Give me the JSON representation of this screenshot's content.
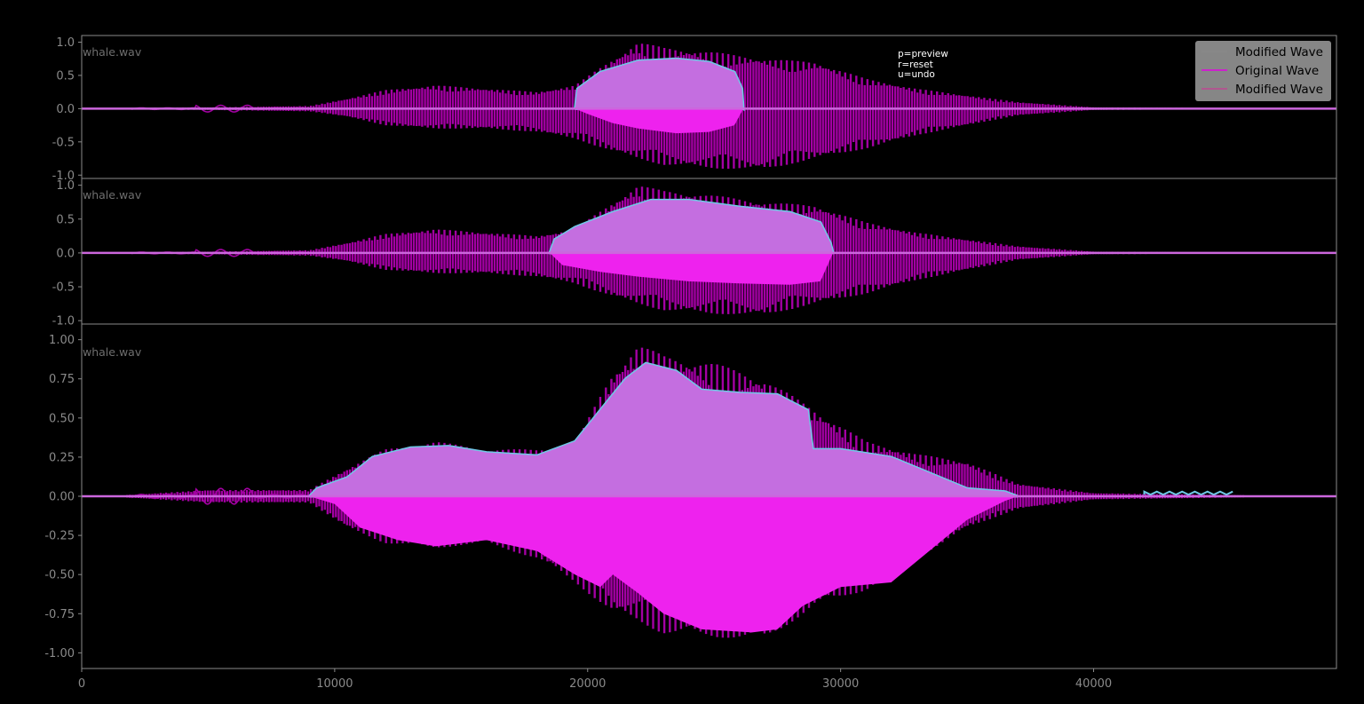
{
  "filename": "whale.wav",
  "help_text": [
    "p=preview",
    "r=reset",
    "u=undo"
  ],
  "legend": [
    {
      "label": "Modified Wave",
      "color": "#888888"
    },
    {
      "label": "Original Wave",
      "color": "#cc22cc"
    },
    {
      "label": "Modified Wave",
      "color": "#b0568f"
    }
  ],
  "colors": {
    "background": "#000000",
    "original": "#a300a3",
    "fill_positive": "#c46ee0",
    "fill_negative": "#ee22ee",
    "outline": "#6fc8e6",
    "zero_line": "#cc66dd",
    "axis": "#8a8a8a",
    "legend_bg": "#8a8a8a"
  },
  "chart_data": [
    {
      "type": "line",
      "panel": "top",
      "series_names": [
        "Modified Wave",
        "Original Wave",
        "Modified Wave"
      ],
      "xlim": [
        0,
        49600
      ],
      "ylim": [
        -1.05,
        1.1
      ],
      "y_ticks": [
        "1.0",
        "0.5",
        "0.0",
        "-0.5",
        "-1.0"
      ],
      "y_tick_values": [
        1.0,
        0.5,
        0.0,
        -0.5,
        -1.0
      ],
      "original_envelope": [
        [
          2000,
          0.01
        ],
        [
          5000,
          0.02
        ],
        [
          9000,
          0.04
        ],
        [
          10500,
          0.15
        ],
        [
          12000,
          0.28
        ],
        [
          14000,
          0.35
        ],
        [
          16000,
          0.3
        ],
        [
          18000,
          0.25
        ],
        [
          19500,
          0.35
        ],
        [
          21000,
          0.75
        ],
        [
          22000,
          1.0
        ],
        [
          23000,
          0.92
        ],
        [
          25000,
          0.85
        ],
        [
          27000,
          0.75
        ],
        [
          29000,
          0.7
        ],
        [
          31000,
          0.45
        ],
        [
          33000,
          0.3
        ],
        [
          35000,
          0.2
        ],
        [
          37000,
          0.1
        ],
        [
          40000,
          0.02
        ],
        [
          49600,
          0.0
        ]
      ],
      "original_envelope_neg": [
        [
          2000,
          -0.01
        ],
        [
          5000,
          -0.02
        ],
        [
          9000,
          -0.04
        ],
        [
          10500,
          -0.12
        ],
        [
          12000,
          -0.25
        ],
        [
          14000,
          -0.3
        ],
        [
          16000,
          -0.3
        ],
        [
          18000,
          -0.35
        ],
        [
          19500,
          -0.45
        ],
        [
          21000,
          -0.65
        ],
        [
          22000,
          -0.75
        ],
        [
          23000,
          -0.85
        ],
        [
          25000,
          -0.9
        ],
        [
          27000,
          -0.92
        ],
        [
          29000,
          -0.75
        ],
        [
          31000,
          -0.6
        ],
        [
          33000,
          -0.4
        ],
        [
          35000,
          -0.25
        ],
        [
          37000,
          -0.1
        ],
        [
          40000,
          -0.02
        ],
        [
          49600,
          0.0
        ]
      ],
      "modified_pos": [
        [
          19500,
          0.0
        ],
        [
          19600,
          0.3
        ],
        [
          20500,
          0.55
        ],
        [
          22000,
          0.72
        ],
        [
          23500,
          0.75
        ],
        [
          24800,
          0.7
        ],
        [
          25800,
          0.55
        ],
        [
          26100,
          0.3
        ],
        [
          26150,
          0.0
        ]
      ],
      "modified_neg": [
        [
          19500,
          0.0
        ],
        [
          20000,
          -0.08
        ],
        [
          21000,
          -0.22
        ],
        [
          22000,
          -0.3
        ],
        [
          23500,
          -0.37
        ],
        [
          24800,
          -0.35
        ],
        [
          25800,
          -0.25
        ],
        [
          26150,
          0.0
        ]
      ]
    },
    {
      "type": "line",
      "panel": "middle",
      "series_names": [
        "Modified Wave",
        "Original Wave",
        "Modified Wave"
      ],
      "xlim": [
        0,
        49600
      ],
      "ylim": [
        -1.05,
        1.1
      ],
      "y_ticks": [
        "1.0",
        "0.5",
        "0.0",
        "-0.5",
        "-1.0"
      ],
      "y_tick_values": [
        1.0,
        0.5,
        0.0,
        -0.5,
        -1.0
      ],
      "original_envelope": [
        [
          2000,
          0.01
        ],
        [
          5000,
          0.02
        ],
        [
          9000,
          0.04
        ],
        [
          10500,
          0.15
        ],
        [
          12000,
          0.28
        ],
        [
          14000,
          0.35
        ],
        [
          16000,
          0.3
        ],
        [
          18000,
          0.25
        ],
        [
          19500,
          0.35
        ],
        [
          21000,
          0.75
        ],
        [
          22000,
          1.0
        ],
        [
          23000,
          0.92
        ],
        [
          25000,
          0.85
        ],
        [
          27000,
          0.75
        ],
        [
          29000,
          0.7
        ],
        [
          31000,
          0.45
        ],
        [
          33000,
          0.3
        ],
        [
          35000,
          0.2
        ],
        [
          37000,
          0.1
        ],
        [
          40000,
          0.02
        ],
        [
          49600,
          0.0
        ]
      ],
      "original_envelope_neg": [
        [
          2000,
          -0.01
        ],
        [
          5000,
          -0.02
        ],
        [
          9000,
          -0.04
        ],
        [
          10500,
          -0.12
        ],
        [
          12000,
          -0.25
        ],
        [
          14000,
          -0.3
        ],
        [
          16000,
          -0.3
        ],
        [
          18000,
          -0.35
        ],
        [
          19500,
          -0.45
        ],
        [
          21000,
          -0.65
        ],
        [
          22000,
          -0.75
        ],
        [
          23000,
          -0.85
        ],
        [
          25000,
          -0.9
        ],
        [
          27000,
          -0.92
        ],
        [
          29000,
          -0.75
        ],
        [
          31000,
          -0.6
        ],
        [
          33000,
          -0.4
        ],
        [
          35000,
          -0.25
        ],
        [
          37000,
          -0.1
        ],
        [
          40000,
          -0.02
        ],
        [
          49600,
          0.0
        ]
      ],
      "modified_pos": [
        [
          18500,
          0.0
        ],
        [
          18700,
          0.2
        ],
        [
          19500,
          0.38
        ],
        [
          21000,
          0.6
        ],
        [
          22500,
          0.78
        ],
        [
          24000,
          0.78
        ],
        [
          26000,
          0.68
        ],
        [
          28000,
          0.6
        ],
        [
          29200,
          0.45
        ],
        [
          29600,
          0.15
        ],
        [
          29700,
          0.0
        ]
      ],
      "modified_neg": [
        [
          18500,
          0.0
        ],
        [
          19000,
          -0.18
        ],
        [
          20500,
          -0.28
        ],
        [
          22000,
          -0.35
        ],
        [
          24000,
          -0.42
        ],
        [
          26000,
          -0.45
        ],
        [
          28000,
          -0.47
        ],
        [
          29200,
          -0.42
        ],
        [
          29700,
          0.0
        ]
      ]
    },
    {
      "type": "line",
      "panel": "bottom",
      "series_names": [
        "Modified Wave",
        "Original Wave",
        "Modified Wave"
      ],
      "xlim": [
        0,
        49600
      ],
      "ylim": [
        -1.1,
        1.1
      ],
      "x_ticks": [
        "0",
        "10000",
        "20000",
        "30000",
        "40000"
      ],
      "x_tick_values": [
        0,
        10000,
        20000,
        30000,
        40000
      ],
      "y_ticks": [
        "1.00",
        "0.75",
        "0.50",
        "0.25",
        "0.00",
        "-0.25",
        "-0.50",
        "-0.75",
        "-1.00"
      ],
      "y_tick_values": [
        1.0,
        0.75,
        0.5,
        0.25,
        0.0,
        -0.25,
        -0.5,
        -0.75,
        -1.0
      ],
      "original_envelope": [
        [
          2000,
          0.01
        ],
        [
          5000,
          0.04
        ],
        [
          9000,
          0.04
        ],
        [
          10500,
          0.18
        ],
        [
          12000,
          0.3
        ],
        [
          14000,
          0.35
        ],
        [
          16000,
          0.3
        ],
        [
          18000,
          0.3
        ],
        [
          19500,
          0.33
        ],
        [
          21000,
          0.8
        ],
        [
          22000,
          0.97
        ],
        [
          23000,
          0.9
        ],
        [
          25000,
          0.85
        ],
        [
          27000,
          0.75
        ],
        [
          29000,
          0.55
        ],
        [
          31000,
          0.35
        ],
        [
          33000,
          0.27
        ],
        [
          35000,
          0.22
        ],
        [
          37000,
          0.08
        ],
        [
          40000,
          0.02
        ],
        [
          49600,
          0.0
        ]
      ],
      "original_envelope_neg": [
        [
          2000,
          -0.01
        ],
        [
          5000,
          -0.04
        ],
        [
          9000,
          -0.04
        ],
        [
          10500,
          -0.2
        ],
        [
          12000,
          -0.3
        ],
        [
          14000,
          -0.33
        ],
        [
          16000,
          -0.3
        ],
        [
          18000,
          -0.4
        ],
        [
          19500,
          -0.55
        ],
        [
          21000,
          -0.75
        ],
        [
          22000,
          -0.8
        ],
        [
          23000,
          -0.88
        ],
        [
          25000,
          -0.9
        ],
        [
          27000,
          -0.92
        ],
        [
          29000,
          -0.7
        ],
        [
          31000,
          -0.6
        ],
        [
          33000,
          -0.4
        ],
        [
          35000,
          -0.2
        ],
        [
          37000,
          -0.08
        ],
        [
          40000,
          -0.02
        ],
        [
          49600,
          0.0
        ]
      ],
      "modified_pos": [
        [
          9000,
          0.0
        ],
        [
          9300,
          0.05
        ],
        [
          10500,
          0.12
        ],
        [
          11500,
          0.25
        ],
        [
          13000,
          0.31
        ],
        [
          14500,
          0.32
        ],
        [
          16000,
          0.28
        ],
        [
          18000,
          0.26
        ],
        [
          19500,
          0.35
        ],
        [
          20500,
          0.55
        ],
        [
          21500,
          0.75
        ],
        [
          22300,
          0.85
        ],
        [
          23500,
          0.8
        ],
        [
          24500,
          0.68
        ],
        [
          26000,
          0.66
        ],
        [
          27500,
          0.65
        ],
        [
          28700,
          0.55
        ],
        [
          28900,
          0.3
        ],
        [
          30000,
          0.3
        ],
        [
          32000,
          0.25
        ],
        [
          33500,
          0.15
        ],
        [
          35000,
          0.05
        ],
        [
          36500,
          0.03
        ],
        [
          37000,
          0.0
        ]
      ],
      "modified_neg": [
        [
          9000,
          0.0
        ],
        [
          10000,
          -0.05
        ],
        [
          11000,
          -0.2
        ],
        [
          12500,
          -0.28
        ],
        [
          14000,
          -0.32
        ],
        [
          16000,
          -0.28
        ],
        [
          18000,
          -0.35
        ],
        [
          19500,
          -0.5
        ],
        [
          20500,
          -0.58
        ],
        [
          21000,
          -0.5
        ],
        [
          22000,
          -0.62
        ],
        [
          23000,
          -0.75
        ],
        [
          24500,
          -0.85
        ],
        [
          26500,
          -0.87
        ],
        [
          27500,
          -0.85
        ],
        [
          28500,
          -0.7
        ],
        [
          30000,
          -0.58
        ],
        [
          32000,
          -0.55
        ],
        [
          33500,
          -0.35
        ],
        [
          35000,
          -0.15
        ],
        [
          36500,
          -0.03
        ],
        [
          37000,
          0.0
        ]
      ]
    }
  ]
}
